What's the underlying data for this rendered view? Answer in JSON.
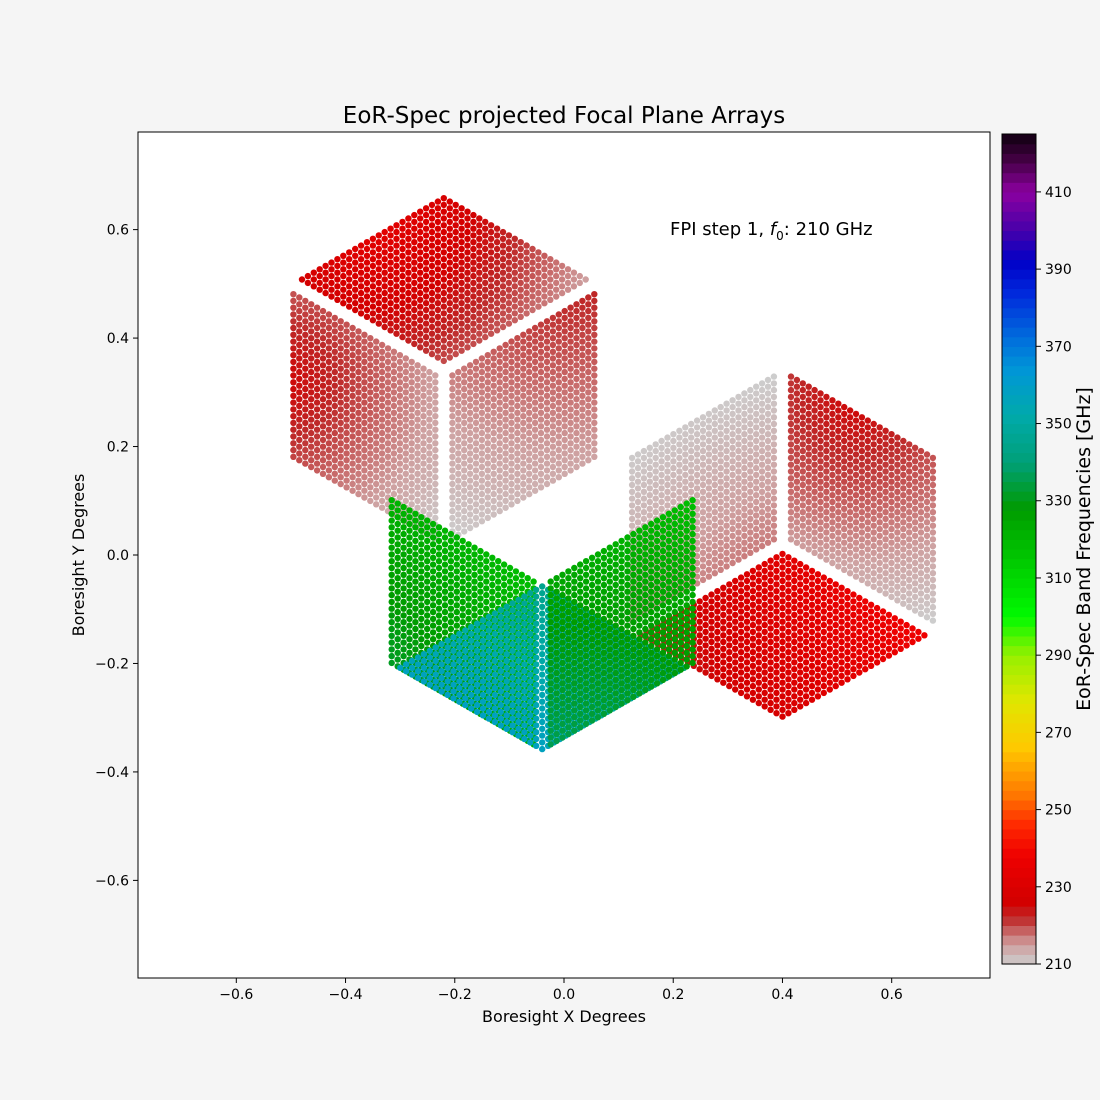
{
  "chart_data": {
    "type": "scatter",
    "title": "EoR-Spec projected Focal Plane Arrays",
    "xlabel": "Boresight X Degrees",
    "ylabel": "Boresight Y Degrees",
    "xlim": [
      -0.78,
      0.78
    ],
    "ylim": [
      -0.78,
      0.78
    ],
    "xticks": [
      "−0.6",
      "−0.4",
      "−0.2",
      "0.0",
      "0.2",
      "0.4",
      "0.6"
    ],
    "xtick_values": [
      -0.6,
      -0.4,
      -0.2,
      0.0,
      0.2,
      0.4,
      0.6
    ],
    "yticks": [
      "−0.6",
      "−0.4",
      "−0.2",
      "0.0",
      "0.2",
      "0.4",
      "0.6"
    ],
    "ytick_values": [
      -0.6,
      -0.4,
      -0.2,
      0.0,
      0.2,
      0.4,
      0.6
    ],
    "grid": false,
    "annotation": {
      "prefix": "FPI step 1, ",
      "symbol": "f",
      "subscript": "0",
      "suffix": ": 210 GHz"
    },
    "colorbar": {
      "label": "EoR-Spec Band Frequencies [GHz]",
      "range": [
        210,
        425
      ],
      "ticks": [
        "210",
        "230",
        "250",
        "270",
        "290",
        "310",
        "330",
        "350",
        "370",
        "390",
        "410"
      ],
      "tick_values": [
        210,
        230,
        250,
        270,
        290,
        310,
        330,
        350,
        370,
        390,
        410
      ]
    },
    "arrays": [
      {
        "id": "upper-left-array",
        "center": [
          -0.22,
          0.34
        ],
        "rhombi": [
          {
            "id": "top",
            "freq_min": 215,
            "freq_max": 235,
            "peak": [
              -0.36,
              0.64
            ]
          },
          {
            "id": "left",
            "freq_min": 210,
            "freq_max": 226,
            "peak": [
              -0.52,
              0.32
            ]
          },
          {
            "id": "right",
            "freq_min": 210,
            "freq_max": 226,
            "peak": [
              -0.0,
              0.62
            ]
          }
        ]
      },
      {
        "id": "right-array",
        "center": [
          0.4,
          0.02
        ],
        "rhombi": [
          {
            "id": "top",
            "freq_min": 210,
            "freq_max": 226,
            "peak": [
              0.54,
              0.29
            ]
          },
          {
            "id": "right",
            "freq_min": 222,
            "freq_max": 244,
            "peak": [
              0.74,
              0.0
            ]
          },
          {
            "id": "bottom",
            "freq_min": 210,
            "freq_max": 226,
            "peak": [
              0.54,
              -0.29
            ]
          }
        ]
      },
      {
        "id": "lower-left-array",
        "center": [
          -0.04,
          -0.04
        ],
        "rhombi": [
          {
            "id": "top",
            "freq_min": 318,
            "freq_max": 342,
            "peak": [
              -0.52,
              -0.32
            ]
          },
          {
            "id": "bottom",
            "freq_min": 342,
            "freq_max": 380,
            "peak": [
              -0.37,
              -0.64
            ]
          },
          {
            "id": "right",
            "freq_min": 318,
            "freq_max": 345,
            "peak": [
              -0.01,
              -0.6
            ]
          }
        ]
      }
    ]
  }
}
